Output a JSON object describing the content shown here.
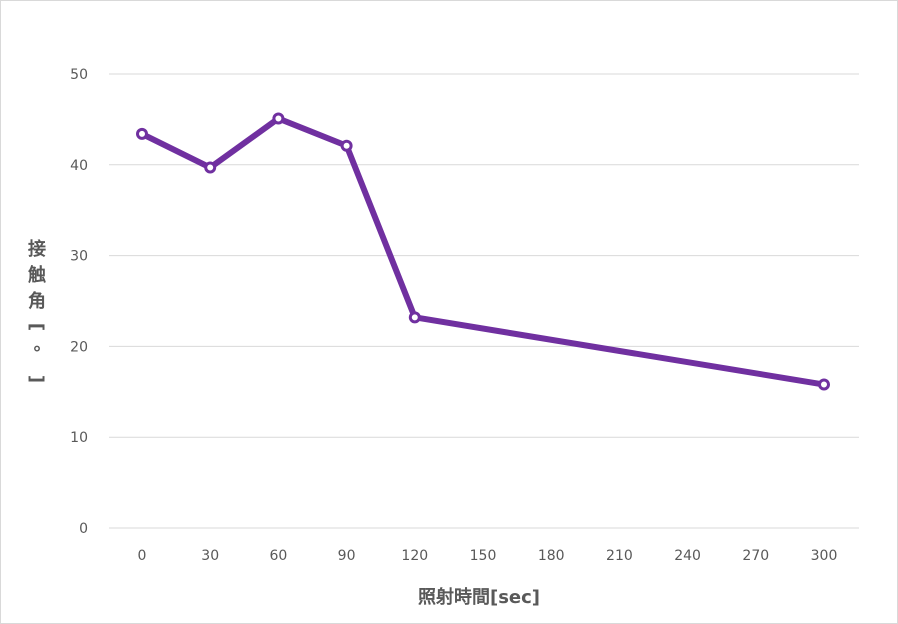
{
  "chart_data": {
    "type": "line",
    "xlabel": "照射時間[sec]",
    "ylabel_chars": [
      "接",
      "触",
      "角",
      "[",
      "°",
      "]"
    ],
    "ylim": [
      0,
      50
    ],
    "y_ticks": [
      0,
      10,
      20,
      30,
      40,
      50
    ],
    "x_ticks": [
      0,
      30,
      60,
      90,
      120,
      150,
      180,
      210,
      240,
      270,
      300
    ],
    "grid": true,
    "series": [
      {
        "color": "#7030a0",
        "x": [
          0,
          30,
          60,
          90,
          120,
          300
        ],
        "y": [
          43.4,
          39.7,
          45.1,
          42.1,
          23.2,
          15.8
        ]
      }
    ]
  }
}
